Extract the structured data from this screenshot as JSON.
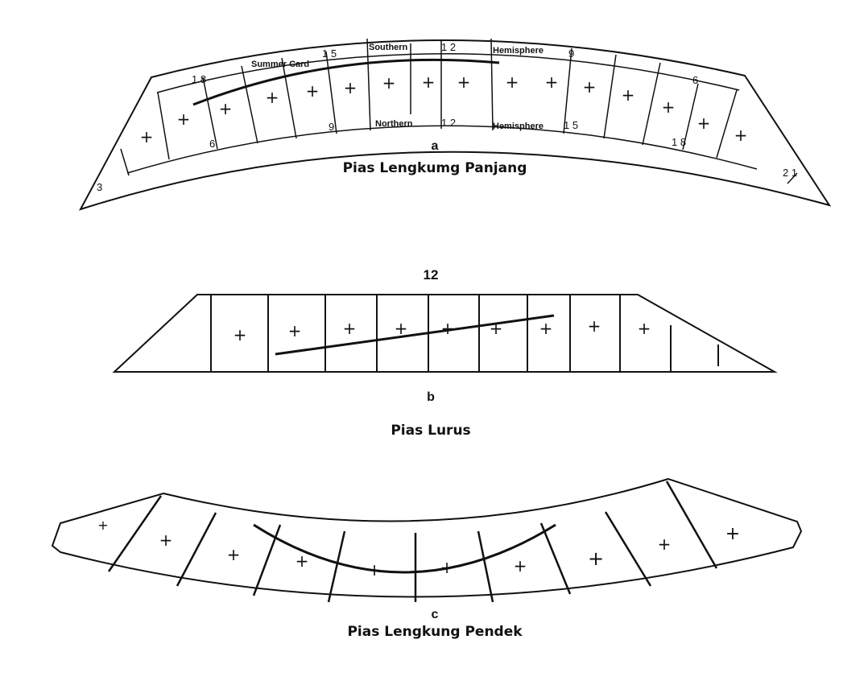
{
  "diagram_a": {
    "letter": "a",
    "caption": "Pias Lengkumg Panjang",
    "label_southern": "Southern",
    "label_hemisphere_top": "Hemisphere",
    "label_northern": "Northern",
    "label_hemisphere_bottom": "Hemisphere",
    "label_summer_card": "Summer Card",
    "hours_top_12": "1 2",
    "hours_bottom_12": "1 2",
    "hour_15_top": "1 5",
    "hour_9_top": "9",
    "hour_18_left": "1 8",
    "hour_6_left": "6",
    "hour_9_bottom": "9",
    "hour_15_bottom": "1 5",
    "hour_6_right": "6",
    "hour_18_right": "1 8",
    "hour_21": "2 1",
    "hour_3": "3",
    "plus_symbol": "+"
  },
  "diagram_b": {
    "top_label": "12",
    "letter": "b",
    "caption": "Pias Lurus",
    "plus_symbol": "+"
  },
  "diagram_c": {
    "letter": "c",
    "caption": "Pias Lengkung Pendek",
    "plus_symbol": "+"
  }
}
